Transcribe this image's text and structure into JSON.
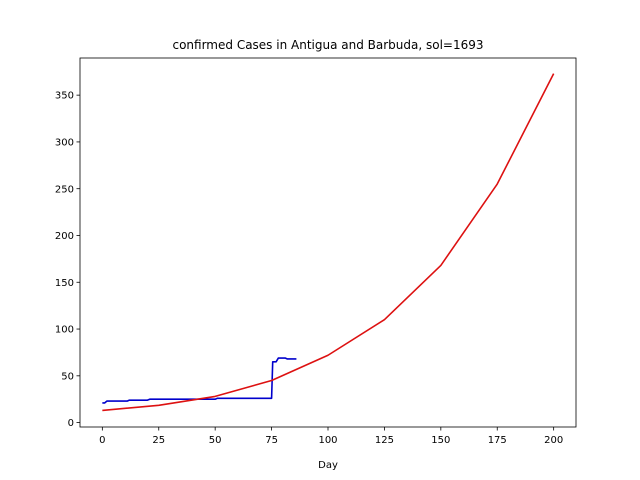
{
  "chart_data": {
    "type": "line",
    "title": "confirmed Cases in Antigua and Barbuda, sol=1693",
    "xlabel": "Day",
    "ylabel": "",
    "xlim": [
      -9.9,
      209.9
    ],
    "ylim": [
      -4.7,
      389.7
    ],
    "xticks": [
      0,
      25,
      50,
      75,
      100,
      125,
      150,
      175,
      200
    ],
    "yticks": [
      0,
      50,
      100,
      150,
      200,
      250,
      300,
      350
    ],
    "grid": false,
    "series": [
      {
        "color": "#0000cc",
        "points": [
          [
            0,
            21
          ],
          [
            1,
            21
          ],
          [
            2,
            23
          ],
          [
            11,
            23
          ],
          [
            12,
            24
          ],
          [
            20,
            24
          ],
          [
            21,
            25
          ],
          [
            50,
            25
          ],
          [
            51,
            26
          ],
          [
            75,
            26
          ],
          [
            75.5,
            65
          ],
          [
            77,
            65
          ],
          [
            78,
            69
          ],
          [
            81,
            69
          ],
          [
            82,
            68
          ],
          [
            86,
            68
          ]
        ]
      },
      {
        "color": "#dd1111",
        "points": [
          [
            0,
            13.0
          ],
          [
            25,
            18.5
          ],
          [
            50,
            28.0
          ],
          [
            75,
            45.0
          ],
          [
            100,
            72.0
          ],
          [
            125,
            110.0
          ],
          [
            150,
            168.0
          ],
          [
            175,
            255.0
          ],
          [
            200,
            373.0
          ]
        ]
      }
    ]
  }
}
